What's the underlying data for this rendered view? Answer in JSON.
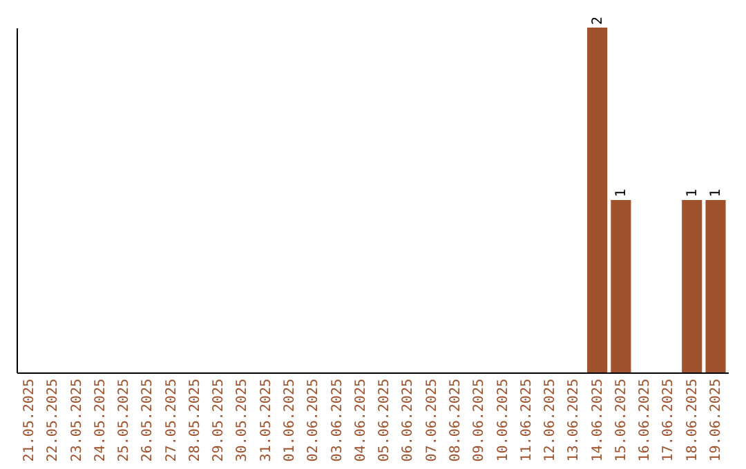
{
  "chart_data": {
    "type": "bar",
    "categories": [
      "21.05.2025",
      "22.05.2025",
      "23.05.2025",
      "24.05.2025",
      "25.05.2025",
      "26.05.2025",
      "27.05.2025",
      "28.05.2025",
      "29.05.2025",
      "30.05.2025",
      "31.05.2025",
      "01.06.2025",
      "02.06.2025",
      "03.06.2025",
      "04.06.2025",
      "05.06.2025",
      "06.06.2025",
      "07.06.2025",
      "08.06.2025",
      "09.06.2025",
      "10.06.2025",
      "11.06.2025",
      "12.06.2025",
      "13.06.2025",
      "14.06.2025",
      "15.06.2025",
      "16.06.2025",
      "17.06.2025",
      "18.06.2025",
      "19.06.2025"
    ],
    "values": [
      null,
      null,
      null,
      null,
      null,
      null,
      null,
      null,
      null,
      null,
      null,
      null,
      null,
      null,
      null,
      null,
      null,
      null,
      null,
      null,
      null,
      null,
      null,
      null,
      2,
      1,
      null,
      null,
      1,
      1
    ],
    "color": "#a0522d",
    "data_labels": true,
    "tick_labels": "x"
  }
}
